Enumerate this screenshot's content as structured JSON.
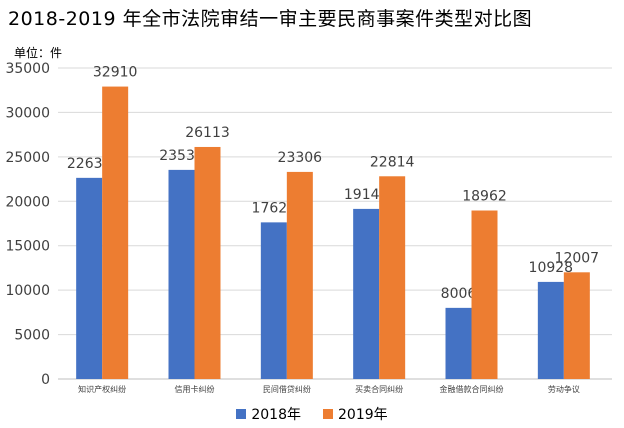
{
  "title": "2018-2019 年全市法院审结一审主要民商事案件类型对比图",
  "unit_label": "单位：件",
  "chart_data": {
    "type": "bar",
    "title": "2018-2019 年全市法院审结一审主要民商事案件类型对比图",
    "ylabel": "单位：件",
    "xlabel": "",
    "ylim": [
      0,
      35000
    ],
    "yticks": [
      0,
      5000,
      10000,
      15000,
      20000,
      25000,
      30000,
      35000
    ],
    "grid": true,
    "legend_position": "bottom",
    "categories": [
      "知识产权纠纷",
      "信用卡纠纷",
      "民间借贷纠纷",
      "买卖合同纠纷",
      "金融借款合同纠纷",
      "劳动争议"
    ],
    "series": [
      {
        "name": "2018年",
        "color": "#4472C4",
        "values": [
          22637,
          23534,
          17628,
          19143,
          8006,
          10928
        ]
      },
      {
        "name": "2019年",
        "color": "#ED7D31",
        "values": [
          32910,
          26113,
          23306,
          22814,
          18962,
          12007
        ]
      }
    ]
  }
}
